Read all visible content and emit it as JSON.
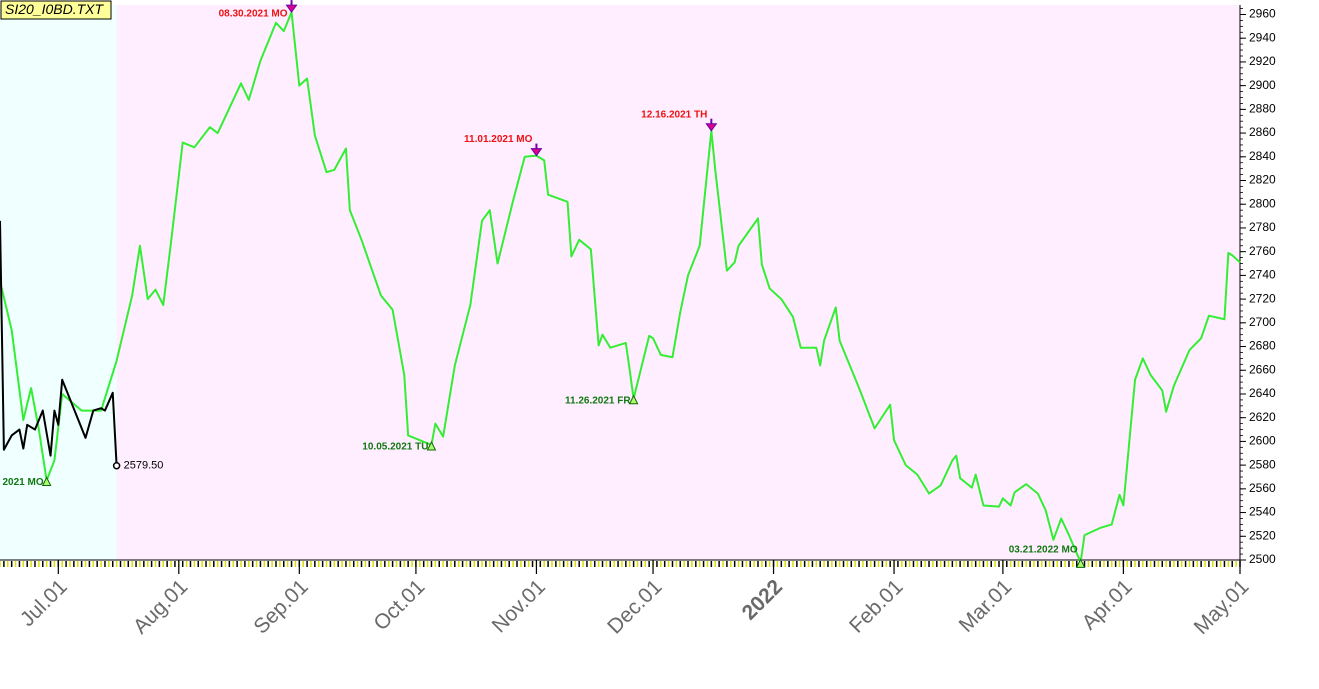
{
  "chart_data": {
    "type": "line",
    "title": "SI20_I0BD.TXT",
    "xlim": [
      "2021-06-16",
      "2022-05-01"
    ],
    "xticks": [
      {
        "value": "2021-07-01",
        "label": "Jul.01"
      },
      {
        "value": "2021-08-01",
        "label": "Aug.01"
      },
      {
        "value": "2021-09-01",
        "label": "Sep.01"
      },
      {
        "value": "2021-10-01",
        "label": "Oct.01"
      },
      {
        "value": "2021-11-01",
        "label": "Nov.01"
      },
      {
        "value": "2021-12-01",
        "label": "Dec.01"
      },
      {
        "value": "2022-01-01",
        "label": "2022"
      },
      {
        "value": "2022-02-01",
        "label": "Feb.01"
      },
      {
        "value": "2022-03-01",
        "label": "Mar.01"
      },
      {
        "value": "2022-04-01",
        "label": "Apr.01"
      },
      {
        "value": "2022-05-01",
        "label": "May.01"
      }
    ],
    "ylim": [
      2500,
      2968
    ],
    "yticks": [
      2500,
      2520,
      2540,
      2560,
      2580,
      2600,
      2620,
      2640,
      2660,
      2680,
      2700,
      2720,
      2740,
      2760,
      2780,
      2800,
      2820,
      2840,
      2860,
      2880,
      2900,
      2920,
      2940,
      2960
    ],
    "series": [
      {
        "color": "#33ee33",
        "x": [
          "2021-06-16",
          "2021-06-19",
          "2021-06-22",
          "2021-06-24",
          "2021-06-26",
          "2021-06-28",
          "2021-06-30",
          "2021-07-02",
          "2021-07-07",
          "2021-07-12",
          "2021-07-16",
          "2021-07-20",
          "2021-07-22",
          "2021-07-24",
          "2021-07-26",
          "2021-07-28",
          "2021-07-30",
          "2021-08-02",
          "2021-08-05",
          "2021-08-09",
          "2021-08-11",
          "2021-08-17",
          "2021-08-19",
          "2021-08-22",
          "2021-08-26",
          "2021-08-28",
          "2021-08-30",
          "2021-09-01",
          "2021-09-03",
          "2021-09-05",
          "2021-09-08",
          "2021-09-10",
          "2021-09-13",
          "2021-09-14",
          "2021-09-17",
          "2021-09-22",
          "2021-09-25",
          "2021-09-28",
          "2021-09-29",
          "2021-10-02",
          "2021-10-05",
          "2021-10-06",
          "2021-10-08",
          "2021-10-11",
          "2021-10-15",
          "2021-10-18",
          "2021-10-20",
          "2021-10-22",
          "2021-10-26",
          "2021-10-29",
          "2021-11-01",
          "2021-11-03",
          "2021-11-04",
          "2021-11-09",
          "2021-11-10",
          "2021-11-12",
          "2021-11-15",
          "2021-11-17",
          "2021-11-18",
          "2021-11-20",
          "2021-11-24",
          "2021-11-25",
          "2021-11-26",
          "2021-11-30",
          "2021-12-01",
          "2021-12-03",
          "2021-12-06",
          "2021-12-08",
          "2021-12-10",
          "2021-12-13",
          "2021-12-16",
          "2021-12-17",
          "2021-12-20",
          "2021-12-22",
          "2021-12-23",
          "2021-12-28",
          "2021-12-29",
          "2021-12-31",
          "2022-01-03",
          "2022-01-06",
          "2022-01-08",
          "2022-01-12",
          "2022-01-13",
          "2022-01-14",
          "2022-01-17",
          "2022-01-18",
          "2022-01-23",
          "2022-01-27",
          "2022-01-31",
          "2022-02-01",
          "2022-02-04",
          "2022-02-07",
          "2022-02-10",
          "2022-02-13",
          "2022-02-16",
          "2022-02-17",
          "2022-02-18",
          "2022-02-21",
          "2022-02-22",
          "2022-02-24",
          "2022-02-28",
          "2022-03-01",
          "2022-03-03",
          "2022-03-04",
          "2022-03-07",
          "2022-03-10",
          "2022-03-12",
          "2022-03-14",
          "2022-03-16",
          "2022-03-18",
          "2022-03-21",
          "2022-03-22",
          "2022-03-26",
          "2022-03-29",
          "2022-03-31",
          "2022-04-01",
          "2022-04-04",
          "2022-04-06",
          "2022-04-08",
          "2022-04-11",
          "2022-04-12",
          "2022-04-14",
          "2022-04-18",
          "2022-04-21",
          "2022-04-23",
          "2022-04-27",
          "2022-04-28",
          "2022-04-29",
          "2022-05-01"
        ],
        "values": [
          2735,
          2694,
          2618,
          2645,
          2610,
          2567,
          2584,
          2640,
          2626,
          2626,
          2668,
          2723,
          2765,
          2720,
          2728,
          2715,
          2768,
          2852,
          2848,
          2865,
          2860,
          2902,
          2888,
          2921,
          2953,
          2946,
          2962,
          2900,
          2906,
          2858,
          2827,
          2829,
          2847,
          2795,
          2770,
          2723,
          2711,
          2656,
          2605,
          2601,
          2597,
          2615,
          2604,
          2664,
          2715,
          2786,
          2795,
          2750,
          2803,
          2840,
          2841,
          2837,
          2808,
          2802,
          2756,
          2770,
          2762,
          2681,
          2690,
          2679,
          2683,
          2660,
          2636,
          2689,
          2687,
          2673,
          2671,
          2709,
          2740,
          2765,
          2862,
          2829,
          2744,
          2751,
          2765,
          2788,
          2749,
          2729,
          2720,
          2705,
          2679,
          2679,
          2664,
          2685,
          2713,
          2685,
          2645,
          2611,
          2631,
          2601,
          2580,
          2572,
          2556,
          2563,
          2584,
          2588,
          2569,
          2561,
          2572,
          2546,
          2545,
          2552,
          2546,
          2557,
          2564,
          2556,
          2542,
          2517,
          2535,
          2521,
          2498,
          2521,
          2527,
          2530,
          2555,
          2546,
          2652,
          2670,
          2656,
          2643,
          2625,
          2647,
          2677,
          2687,
          2706,
          2703,
          2759,
          2757,
          2751
        ]
      },
      {
        "color": "#000000",
        "x": [
          "2021-06-16",
          "2021-06-17",
          "2021-06-19",
          "2021-06-21",
          "2021-06-22",
          "2021-06-23",
          "2021-06-25",
          "2021-06-27",
          "2021-06-29",
          "2021-06-30",
          "2021-07-01",
          "2021-07-02",
          "2021-07-08",
          "2021-07-10",
          "2021-07-12",
          "2021-07-13",
          "2021-07-15",
          "2021-07-16"
        ],
        "values": [
          2786,
          2593,
          2605,
          2610,
          2594,
          2614,
          2610,
          2626,
          2588,
          2626,
          2614,
          2652,
          2603,
          2626,
          2628,
          2626,
          2641,
          2579.5
        ],
        "value_labels": [
          null,
          null,
          null,
          null,
          null,
          null,
          null,
          null,
          null,
          null,
          null,
          null,
          null,
          null,
          null,
          null,
          null,
          "2579.50"
        ]
      }
    ],
    "annotations": [
      {
        "x": "2021-06-28",
        "value": 2567,
        "label": "2021 MO",
        "kind": "low",
        "color": "#117711"
      },
      {
        "x": "2021-08-30",
        "value": 2962,
        "label": "08.30.2021 MO",
        "kind": "high",
        "color": "#ee1111"
      },
      {
        "x": "2021-10-05",
        "value": 2597,
        "label": "10.05.2021 TU",
        "kind": "low",
        "color": "#117711"
      },
      {
        "x": "2021-11-01",
        "value": 2841,
        "label": "11.01.2021 MO",
        "kind": "high",
        "color": "#ee1111"
      },
      {
        "x": "2021-11-26",
        "value": 2636,
        "label": "11.26.2021 FR",
        "kind": "low",
        "color": "#117711"
      },
      {
        "x": "2021-12-16",
        "value": 2862,
        "label": "12.16.2021 TH",
        "kind": "high",
        "color": "#ee1111"
      },
      {
        "x": "2022-03-21",
        "value": 2498,
        "label": "03.21.2022 MO",
        "kind": "low",
        "color": "#117711"
      }
    ]
  }
}
